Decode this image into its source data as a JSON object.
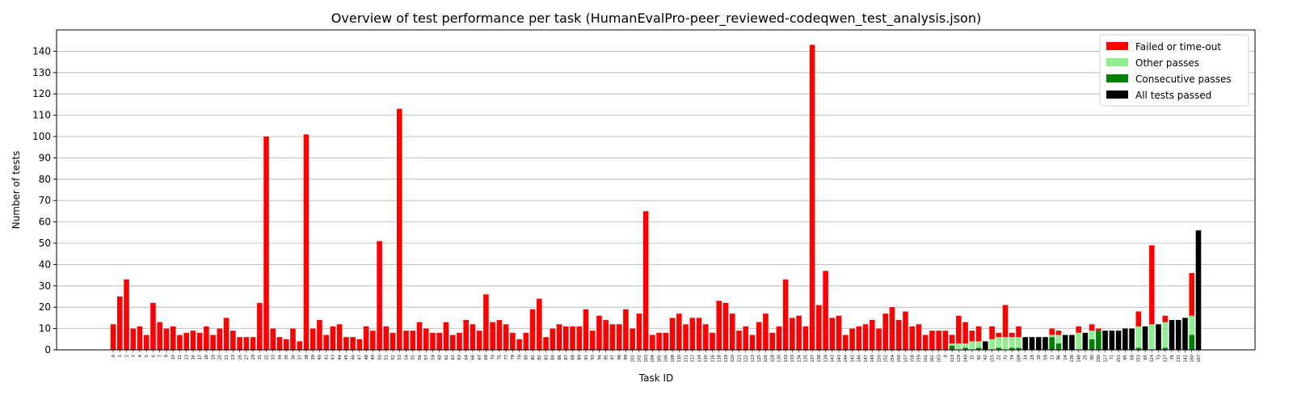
{
  "chart_data": {
    "type": "bar",
    "stacked": true,
    "title": "Overview of test performance per task (HumanEvalPro-peer_reviewed-codeqwen_test_analysis.json)",
    "x_label": "Task ID",
    "y_label": "Number of tests",
    "ylim": [
      0,
      150
    ],
    "yticks": [
      0,
      10,
      20,
      30,
      40,
      50,
      60,
      70,
      80,
      90,
      100,
      110,
      120,
      130,
      140
    ],
    "grid": true,
    "legend": "upper right",
    "categories": [
      "0",
      "1",
      "2",
      "3",
      "4",
      "5",
      "6",
      "7",
      "9",
      "10",
      "12",
      "13",
      "16",
      "17",
      "18",
      "19",
      "20",
      "21",
      "23",
      "26",
      "27",
      "29",
      "31",
      "32",
      "33",
      "34",
      "35",
      "36",
      "37",
      "38",
      "39",
      "40",
      "41",
      "43",
      "44",
      "45",
      "46",
      "47",
      "48",
      "49",
      "50",
      "51",
      "52",
      "53",
      "54",
      "55",
      "56",
      "57",
      "58",
      "60",
      "61",
      "62",
      "63",
      "64",
      "66",
      "67",
      "69",
      "70",
      "75",
      "77",
      "78",
      "79",
      "80",
      "81",
      "82",
      "83",
      "84",
      "86",
      "87",
      "88",
      "89",
      "91",
      "93",
      "94",
      "95",
      "97",
      "98",
      "99",
      "101",
      "102",
      "103",
      "104",
      "105",
      "106",
      "108",
      "110",
      "111",
      "112",
      "114",
      "115",
      "116",
      "118",
      "119",
      "120",
      "121",
      "122",
      "123",
      "125",
      "126",
      "128",
      "130",
      "132",
      "133",
      "134",
      "135",
      "137",
      "138",
      "139",
      "141",
      "143",
      "144",
      "145",
      "146",
      "147",
      "149",
      "150",
      "152",
      "154",
      "156",
      "157",
      "158",
      "159",
      "161",
      "162",
      "163",
      "8",
      "113",
      "129",
      "140",
      "15",
      "92",
      "42",
      "155",
      "22",
      "72",
      "74",
      "109",
      "14",
      "28",
      "30",
      "59",
      "11",
      "96",
      "24",
      "136",
      "148",
      "25",
      "90",
      "100",
      "127",
      "71",
      "151",
      "85",
      "68",
      "153",
      "65",
      "124",
      "73",
      "117",
      "76",
      "131",
      "142",
      "160",
      "107"
    ],
    "series": [
      {
        "name": "Failed or time-out",
        "color": "#ff0000",
        "values": [
          12,
          25,
          33,
          10,
          11,
          7,
          22,
          13,
          10,
          11,
          7,
          8,
          9,
          8,
          11,
          7,
          10,
          15,
          9,
          6,
          6,
          6,
          22,
          100,
          10,
          6,
          5,
          10,
          4,
          101,
          10,
          14,
          7,
          11,
          12,
          6,
          6,
          5,
          11,
          9,
          51,
          11,
          8,
          113,
          9,
          9,
          13,
          10,
          8,
          8,
          13,
          7,
          8,
          14,
          12,
          9,
          26,
          13,
          14,
          12,
          8,
          5,
          8,
          19,
          24,
          6,
          10,
          12,
          11,
          11,
          11,
          19,
          9,
          16,
          14,
          12,
          12,
          19,
          10,
          17,
          65,
          7,
          8,
          8,
          15,
          17,
          12,
          15,
          15,
          12,
          8,
          23,
          22,
          17,
          9,
          11,
          7,
          13,
          17,
          8,
          11,
          33,
          15,
          16,
          11,
          143,
          21,
          37,
          15,
          16,
          7,
          10,
          11,
          12,
          14,
          10,
          17,
          20,
          14,
          18,
          11,
          12,
          7,
          9,
          9,
          9,
          4,
          13,
          10,
          5,
          7,
          0,
          6,
          2,
          15,
          2,
          5,
          0,
          0,
          0,
          0,
          3,
          2,
          0,
          0,
          3,
          0,
          3,
          1,
          0,
          0,
          0,
          0,
          0,
          7,
          0,
          37,
          0,
          3,
          0,
          0,
          0,
          20,
          0
        ]
      },
      {
        "name": "Other passes",
        "color": "#90ee90",
        "values": [
          0,
          0,
          0,
          0,
          0,
          0,
          0,
          0,
          0,
          0,
          0,
          0,
          0,
          0,
          0,
          0,
          0,
          0,
          0,
          0,
          0,
          0,
          0,
          0,
          0,
          0,
          0,
          0,
          0,
          0,
          0,
          0,
          0,
          0,
          0,
          0,
          0,
          0,
          0,
          0,
          0,
          0,
          0,
          0,
          0,
          0,
          0,
          0,
          0,
          0,
          0,
          0,
          0,
          0,
          0,
          0,
          0,
          0,
          0,
          0,
          0,
          0,
          0,
          0,
          0,
          0,
          0,
          0,
          0,
          0,
          0,
          0,
          0,
          0,
          0,
          0,
          0,
          0,
          0,
          0,
          0,
          0,
          0,
          0,
          0,
          0,
          0,
          0,
          0,
          0,
          0,
          0,
          0,
          0,
          0,
          0,
          0,
          0,
          0,
          0,
          0,
          0,
          0,
          0,
          0,
          0,
          0,
          0,
          0,
          0,
          0,
          0,
          0,
          0,
          0,
          0,
          0,
          0,
          0,
          0,
          0,
          0,
          0,
          0,
          0,
          0,
          1,
          3,
          2,
          4,
          3,
          0,
          5,
          5,
          6,
          5,
          5,
          0,
          0,
          0,
          0,
          1,
          4,
          0,
          0,
          8,
          0,
          4,
          0,
          0,
          0,
          0,
          0,
          0,
          10,
          0,
          12,
          0,
          12,
          0,
          0,
          0,
          9,
          0
        ]
      },
      {
        "name": "Consecutive passes",
        "color": "#008000",
        "values": [
          0,
          0,
          0,
          0,
          0,
          0,
          0,
          0,
          0,
          0,
          0,
          0,
          0,
          0,
          0,
          0,
          0,
          0,
          0,
          0,
          0,
          0,
          0,
          0,
          0,
          0,
          0,
          0,
          0,
          0,
          0,
          0,
          0,
          0,
          0,
          0,
          0,
          0,
          0,
          0,
          0,
          0,
          0,
          0,
          0,
          0,
          0,
          0,
          0,
          0,
          0,
          0,
          0,
          0,
          0,
          0,
          0,
          0,
          0,
          0,
          0,
          0,
          0,
          0,
          0,
          0,
          0,
          0,
          0,
          0,
          0,
          0,
          0,
          0,
          0,
          0,
          0,
          0,
          0,
          0,
          0,
          0,
          0,
          0,
          0,
          0,
          0,
          0,
          0,
          0,
          0,
          0,
          0,
          0,
          0,
          0,
          0,
          0,
          0,
          0,
          0,
          0,
          0,
          0,
          0,
          0,
          0,
          0,
          0,
          0,
          0,
          0,
          0,
          0,
          0,
          0,
          0,
          0,
          0,
          0,
          0,
          0,
          0,
          0,
          0,
          0,
          2,
          0,
          1,
          0,
          1,
          0,
          0,
          1,
          0,
          1,
          1,
          0,
          0,
          0,
          0,
          6,
          3,
          0,
          0,
          0,
          0,
          5,
          9,
          0,
          0,
          0,
          0,
          0,
          1,
          0,
          0,
          0,
          1,
          0,
          0,
          0,
          7,
          0
        ]
      },
      {
        "name": "All tests passed",
        "color": "#000000",
        "values": [
          0,
          0,
          0,
          0,
          0,
          0,
          0,
          0,
          0,
          0,
          0,
          0,
          0,
          0,
          0,
          0,
          0,
          0,
          0,
          0,
          0,
          0,
          0,
          0,
          0,
          0,
          0,
          0,
          0,
          0,
          0,
          0,
          0,
          0,
          0,
          0,
          0,
          0,
          0,
          0,
          0,
          0,
          0,
          0,
          0,
          0,
          0,
          0,
          0,
          0,
          0,
          0,
          0,
          0,
          0,
          0,
          0,
          0,
          0,
          0,
          0,
          0,
          0,
          0,
          0,
          0,
          0,
          0,
          0,
          0,
          0,
          0,
          0,
          0,
          0,
          0,
          0,
          0,
          0,
          0,
          0,
          0,
          0,
          0,
          0,
          0,
          0,
          0,
          0,
          0,
          0,
          0,
          0,
          0,
          0,
          0,
          0,
          0,
          0,
          0,
          0,
          0,
          0,
          0,
          0,
          0,
          0,
          0,
          0,
          0,
          0,
          0,
          0,
          0,
          0,
          0,
          0,
          0,
          0,
          0,
          0,
          0,
          0,
          0,
          0,
          0,
          0,
          0,
          0,
          0,
          0,
          4,
          0,
          0,
          0,
          0,
          0,
          6,
          6,
          6,
          6,
          0,
          0,
          7,
          7,
          0,
          8,
          0,
          0,
          9,
          9,
          9,
          10,
          10,
          0,
          11,
          0,
          12,
          0,
          14,
          14,
          15,
          0,
          56
        ]
      }
    ]
  }
}
